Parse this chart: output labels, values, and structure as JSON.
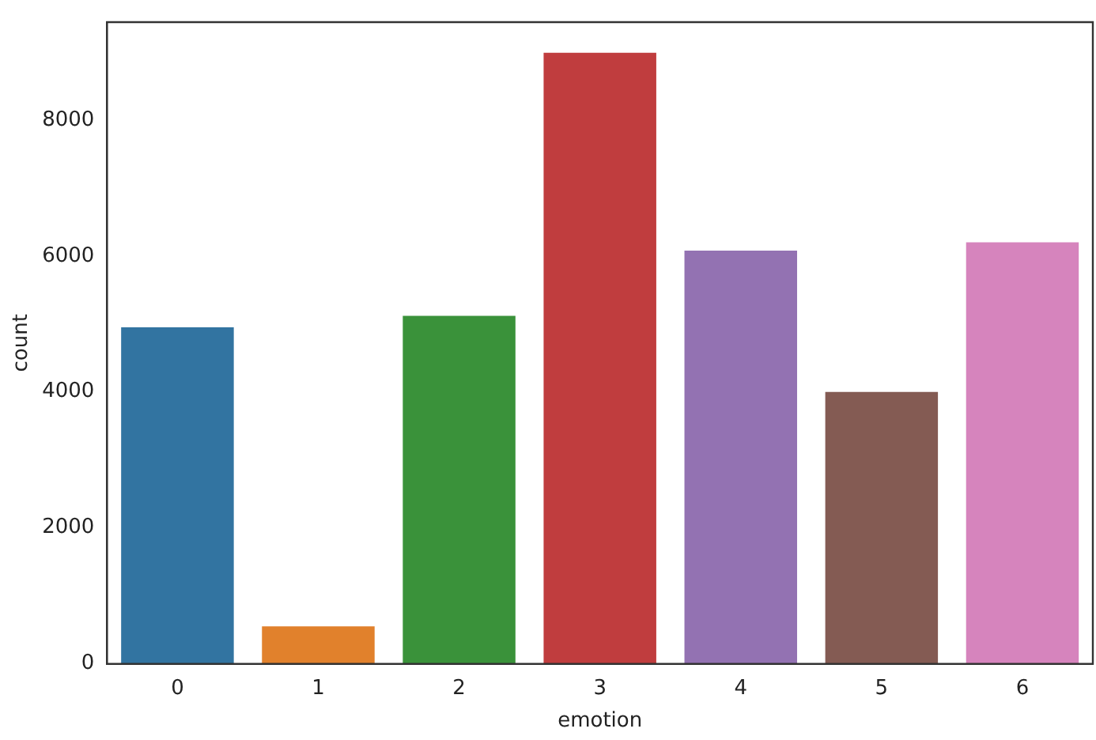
{
  "chart_data": {
    "type": "bar",
    "xlabel": "emotion",
    "ylabel": "count",
    "categories": [
      "0",
      "1",
      "2",
      "3",
      "4",
      "5",
      "6"
    ],
    "values": [
      4950,
      550,
      5120,
      8990,
      6080,
      4000,
      6200
    ],
    "colors": [
      "#3274a1",
      "#e1812c",
      "#3a923a",
      "#c03d3e",
      "#9372b2",
      "#845b53",
      "#d684bd"
    ],
    "ylim": [
      0,
      9440
    ],
    "yticks": [
      0,
      2000,
      4000,
      6000,
      8000
    ],
    "grid": false,
    "legend": false
  }
}
